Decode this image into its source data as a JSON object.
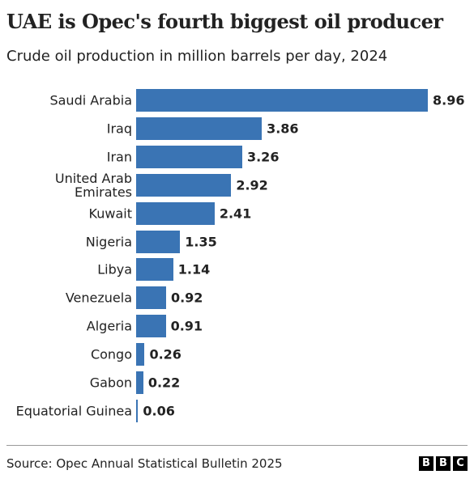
{
  "chart_data": {
    "type": "bar",
    "orientation": "horizontal",
    "title": "UAE is Opec's fourth biggest oil producer",
    "subtitle": "Crude oil production in million barrels per day, 2024",
    "categories": [
      "Saudi Arabia",
      "Iraq",
      "Iran",
      "United Arab Emirates",
      "Kuwait",
      "Nigeria",
      "Libya",
      "Venezuela",
      "Algeria",
      "Congo",
      "Gabon",
      "Equatorial Guinea"
    ],
    "values": [
      8.96,
      3.86,
      3.26,
      2.92,
      2.41,
      1.35,
      1.14,
      0.92,
      0.91,
      0.26,
      0.22,
      0.06
    ],
    "color": "#3a74b4",
    "source": "Source: Opec Annual Statistical Bulletin 2025",
    "logo": [
      "B",
      "B",
      "C"
    ]
  }
}
